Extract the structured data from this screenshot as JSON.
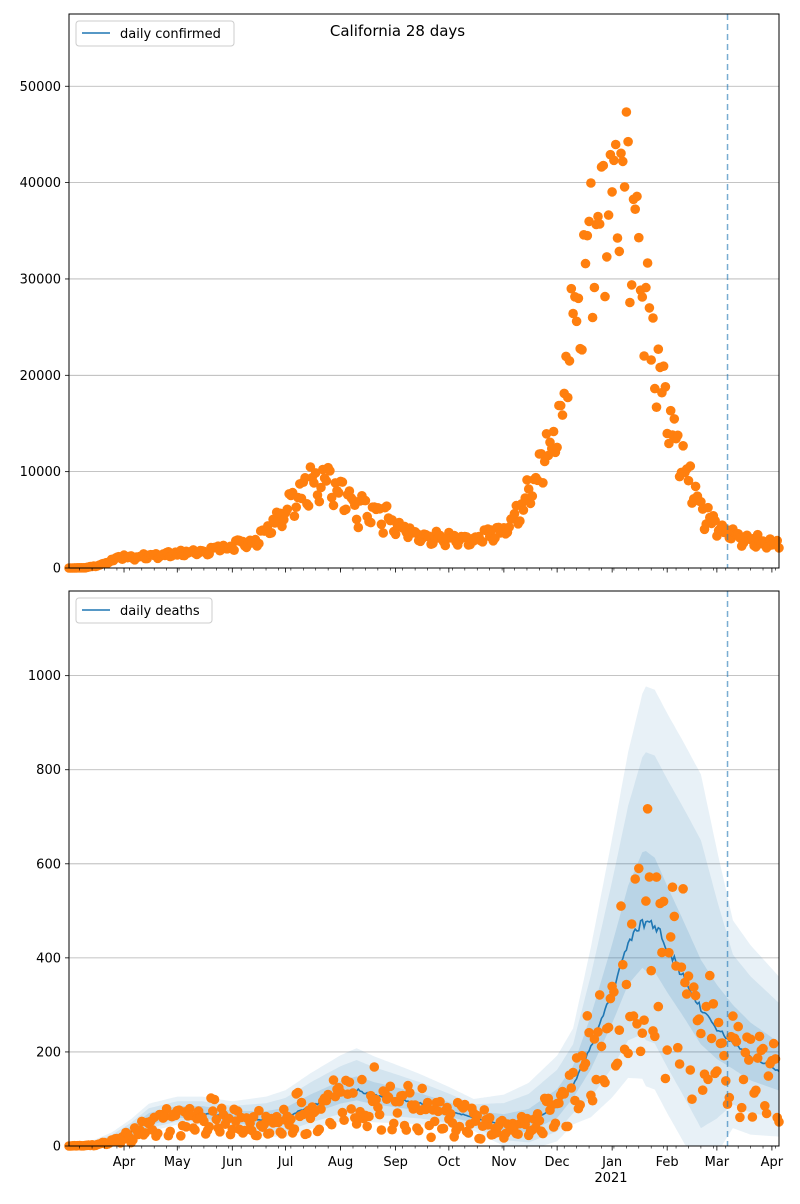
{
  "figure": {
    "title": "California 28 days"
  },
  "x_axis": {
    "tick_labels": [
      "Apr",
      "May",
      "Jun",
      "Jul",
      "Aug",
      "Sep",
      "Oct",
      "Nov",
      "Dec",
      "Jan",
      "Feb",
      "Mar",
      "Apr"
    ],
    "tick_dates": [
      "2020-04-01",
      "2020-05-01",
      "2020-06-01",
      "2020-07-01",
      "2020-08-01",
      "2020-09-01",
      "2020-10-01",
      "2020-11-01",
      "2020-12-01",
      "2021-01-01",
      "2021-02-01",
      "2021-03-01",
      "2021-04-01"
    ],
    "year_label": "2021",
    "range": [
      "2020-03-01",
      "2021-04-05"
    ],
    "minor_ticks": "weekly"
  },
  "colors": {
    "fit_line": "#1f77b4",
    "observed_points": "#ff7f0e",
    "band": "#1f77b4",
    "grid": "#b0b0b0",
    "forecast_start_line": "#1f77b4"
  },
  "chart_data": [
    {
      "type": "scatter",
      "panel": "top",
      "legend": {
        "label": "daily confirmed",
        "placement": "top-left"
      },
      "ylim": [
        0,
        57500
      ],
      "yticks": [
        0,
        10000,
        20000,
        30000,
        40000,
        50000
      ],
      "grid": "y",
      "forecast_start": "2021-03-07",
      "observed_anchors": [
        [
          "2020-03-01",
          0
        ],
        [
          "2020-03-10",
          30
        ],
        [
          "2020-03-18",
          300
        ],
        [
          "2020-03-25",
          900
        ],
        [
          "2020-04-01",
          1200
        ],
        [
          "2020-04-15",
          1300
        ],
        [
          "2020-05-01",
          1700
        ],
        [
          "2020-05-15",
          1800
        ],
        [
          "2020-06-01",
          2500
        ],
        [
          "2020-06-15",
          3100
        ],
        [
          "2020-06-25",
          5000
        ],
        [
          "2020-07-05",
          7500
        ],
        [
          "2020-07-15",
          9000
        ],
        [
          "2020-07-25",
          9600
        ],
        [
          "2020-08-05",
          7500
        ],
        [
          "2020-08-15",
          6500
        ],
        [
          "2020-09-01",
          5000
        ],
        [
          "2020-09-15",
          3500
        ],
        [
          "2020-10-01",
          3300
        ],
        [
          "2020-10-15",
          3200
        ],
        [
          "2020-11-01",
          4200
        ],
        [
          "2020-11-10",
          6000
        ],
        [
          "2020-11-20",
          10500
        ],
        [
          "2020-12-01",
          15500
        ],
        [
          "2020-12-10",
          27000
        ],
        [
          "2020-12-20",
          38000
        ],
        [
          "2021-01-01",
          40000
        ],
        [
          "2021-01-08",
          43000
        ],
        [
          "2021-01-15",
          36000
        ],
        [
          "2021-01-25",
          23000
        ],
        [
          "2021-02-01",
          17000
        ],
        [
          "2021-02-10",
          11500
        ],
        [
          "2021-02-20",
          6500
        ],
        [
          "2021-03-01",
          4500
        ],
        [
          "2021-03-15",
          3200
        ],
        [
          "2021-04-05",
          2600
        ]
      ],
      "fit_line": []
    },
    {
      "type": "line",
      "panel": "bottom",
      "legend": {
        "label": "daily deaths",
        "placement": "top-left"
      },
      "ylim": [
        0,
        1180
      ],
      "yticks": [
        0,
        200,
        400,
        600,
        800,
        1000
      ],
      "grid": "y",
      "forecast_start": "2021-03-07",
      "fit_line": [
        [
          "2020-03-01",
          0
        ],
        [
          "2020-03-15",
          2
        ],
        [
          "2020-03-25",
          10
        ],
        [
          "2020-04-05",
          30
        ],
        [
          "2020-04-15",
          55
        ],
        [
          "2020-05-01",
          70
        ],
        [
          "2020-05-15",
          70
        ],
        [
          "2020-06-01",
          60
        ],
        [
          "2020-06-20",
          55
        ],
        [
          "2020-07-01",
          60
        ],
        [
          "2020-07-15",
          85
        ],
        [
          "2020-08-01",
          110
        ],
        [
          "2020-08-10",
          118
        ],
        [
          "2020-08-20",
          108
        ],
        [
          "2020-09-01",
          100
        ],
        [
          "2020-09-15",
          90
        ],
        [
          "2020-10-01",
          75
        ],
        [
          "2020-10-15",
          60
        ],
        [
          "2020-11-01",
          45
        ],
        [
          "2020-11-15",
          50
        ],
        [
          "2020-12-01",
          85
        ],
        [
          "2020-12-10",
          130
        ],
        [
          "2020-12-20",
          210
        ],
        [
          "2021-01-01",
          330
        ],
        [
          "2021-01-10",
          430
        ],
        [
          "2021-01-18",
          480
        ],
        [
          "2021-01-25",
          470
        ],
        [
          "2021-02-01",
          420
        ],
        [
          "2021-02-10",
          360
        ],
        [
          "2021-02-20",
          290
        ],
        [
          "2021-03-01",
          250
        ],
        [
          "2021-03-10",
          220
        ],
        [
          "2021-03-20",
          190
        ],
        [
          "2021-04-05",
          160
        ]
      ],
      "band_inner_width": [
        [
          "2020-03-01",
          0
        ],
        [
          "2020-04-15",
          15
        ],
        [
          "2020-06-01",
          15
        ],
        [
          "2020-08-10",
          30
        ],
        [
          "2020-10-15",
          15
        ],
        [
          "2020-12-10",
          40
        ],
        [
          "2021-01-20",
          150
        ],
        [
          "2021-03-10",
          80
        ],
        [
          "2021-04-05",
          60
        ]
      ],
      "band_outer_width": [
        [
          "2020-03-01",
          0
        ],
        [
          "2020-04-15",
          35
        ],
        [
          "2020-06-01",
          35
        ],
        [
          "2020-08-10",
          90
        ],
        [
          "2020-10-15",
          40
        ],
        [
          "2020-12-10",
          120
        ],
        [
          "2021-01-20",
          500
        ],
        [
          "2021-02-20",
          500
        ],
        [
          "2021-03-10",
          260
        ],
        [
          "2021-04-05",
          200
        ]
      ],
      "observed_anchors": []
    }
  ]
}
